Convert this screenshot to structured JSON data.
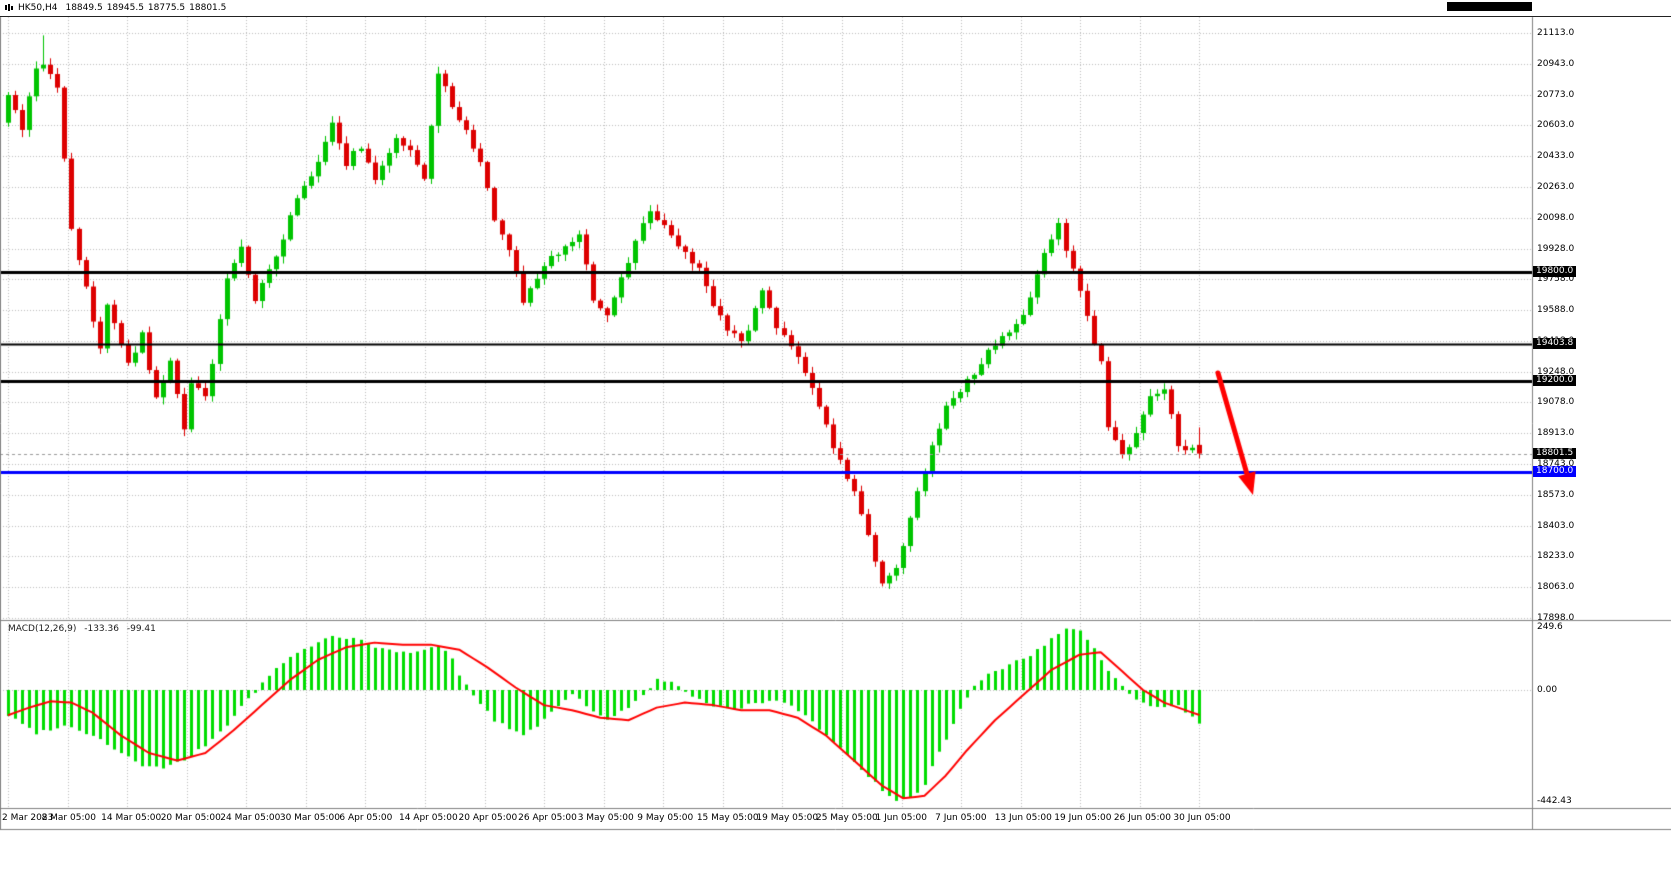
{
  "header": {
    "symbol": "HK50,H4",
    "open": "18849.5",
    "high": "18945.5",
    "low": "18775.5",
    "close": "18801.5"
  },
  "colors": {
    "bull": "#00c400",
    "bear": "#dd0000",
    "grid": "#bdbdbd",
    "macd_hist": "#00dd00",
    "macd_signal": "#ff0000",
    "hline_black": "#000000",
    "hline_blue": "#0000ff",
    "arrow": "#ff0000",
    "axis_text": "#000000",
    "price_marker_bg": "#000000"
  },
  "chart_data": {
    "type": "candlestick",
    "symbol": "HK50",
    "timeframe": "H4",
    "candle_count": 170,
    "y_axis": {
      "min": 17898.0,
      "max": 21113.0,
      "ticks": [
        "21113.0",
        "20943.0",
        "20773.0",
        "20603.0",
        "20433.0",
        "20263.0",
        "20098.0",
        "19928.0",
        "19758.0",
        "19588.0",
        "19418.0",
        "19248.0",
        "19078.0",
        "18913.0",
        "18743.0",
        "18573.0",
        "18403.0",
        "18233.0",
        "18063.0",
        "17898.0"
      ]
    },
    "x_labels": [
      "2 Mar 2023",
      "8 Mar 05:00",
      "14 Mar 05:00",
      "20 Mar 05:00",
      "24 Mar 05:00",
      "30 Mar 05:00",
      "6 Apr 05:00",
      "14 Apr 05:00",
      "20 Apr 05:00",
      "26 Apr 05:00",
      "3 May 05:00",
      "9 May 05:00",
      "15 May 05:00",
      "19 May 05:00",
      "25 May 05:00",
      "1 Jun 05:00",
      "7 Jun 05:00",
      "13 Jun 05:00",
      "19 Jun 05:00",
      "26 Jun 05:00",
      "30 Jun 05:00"
    ],
    "last_candle": {
      "open": 18849.5,
      "high": 18945.5,
      "low": 18775.5,
      "close": 18801.5
    },
    "price_anchors": [
      [
        0,
        20750
      ],
      [
        2,
        20600
      ],
      [
        4,
        20900
      ],
      [
        5,
        20950
      ],
      [
        7,
        20800
      ],
      [
        9,
        20050
      ],
      [
        11,
        19700
      ],
      [
        13,
        19400
      ],
      [
        14,
        19600
      ],
      [
        16,
        19400
      ],
      [
        17,
        19300
      ],
      [
        19,
        19450
      ],
      [
        21,
        19100
      ],
      [
        23,
        19300
      ],
      [
        25,
        18950
      ],
      [
        26,
        19200
      ],
      [
        28,
        19100
      ],
      [
        31,
        19750
      ],
      [
        33,
        19950
      ],
      [
        35,
        19650
      ],
      [
        37,
        19800
      ],
      [
        41,
        20200
      ],
      [
        44,
        20400
      ],
      [
        46,
        20600
      ],
      [
        48,
        20400
      ],
      [
        50,
        20500
      ],
      [
        52,
        20300
      ],
      [
        55,
        20550
      ],
      [
        57,
        20450
      ],
      [
        59,
        20300
      ],
      [
        61,
        20900
      ],
      [
        63,
        20700
      ],
      [
        65,
        20600
      ],
      [
        67,
        20400
      ],
      [
        69,
        20100
      ],
      [
        71,
        19900
      ],
      [
        73,
        19650
      ],
      [
        76,
        19850
      ],
      [
        78,
        19900
      ],
      [
        81,
        20000
      ],
      [
        83,
        19650
      ],
      [
        85,
        19550
      ],
      [
        88,
        19850
      ],
      [
        91,
        20150
      ],
      [
        93,
        20050
      ],
      [
        95,
        19950
      ],
      [
        98,
        19800
      ],
      [
        101,
        19550
      ],
      [
        104,
        19400
      ],
      [
        107,
        19700
      ],
      [
        109,
        19500
      ],
      [
        111,
        19400
      ],
      [
        114,
        19150
      ],
      [
        116,
        18950
      ],
      [
        118,
        18750
      ],
      [
        120,
        18600
      ],
      [
        122,
        18350
      ],
      [
        124,
        18100
      ],
      [
        126,
        18150
      ],
      [
        128,
        18450
      ],
      [
        131,
        18850
      ],
      [
        133,
        19050
      ],
      [
        136,
        19200
      ],
      [
        138,
        19300
      ],
      [
        140,
        19400
      ],
      [
        143,
        19500
      ],
      [
        145,
        19650
      ],
      [
        147,
        19900
      ],
      [
        149,
        20050
      ],
      [
        151,
        19800
      ],
      [
        153,
        19550
      ],
      [
        155,
        19300
      ],
      [
        156,
        18950
      ],
      [
        158,
        18800
      ],
      [
        160,
        18900
      ],
      [
        162,
        19100
      ],
      [
        164,
        19150
      ],
      [
        166,
        18850
      ],
      [
        169,
        18801.5
      ]
    ],
    "horizontal_lines": [
      {
        "price": 19800.0,
        "label": "19800.0",
        "color": "#000000",
        "width": 3
      },
      {
        "price": 19403.8,
        "label": "19403.8",
        "color": "#000000",
        "width": 2
      },
      {
        "price": 19200.0,
        "label": "19200.0",
        "color": "#000000",
        "width": 3
      },
      {
        "price": 18700.0,
        "label": "18700.0",
        "color": "#0000ff",
        "width": 3
      }
    ],
    "current_price": {
      "value": 18801.5,
      "label": "18801.5"
    },
    "arrow": {
      "from": [
        1218,
        373
      ],
      "to": [
        1253,
        495
      ],
      "color": "#ff0000"
    },
    "macd": {
      "label": "MACD(12,26,9)",
      "value_main": "-133.36",
      "value_signal": "-99.41",
      "axis_ticks": [
        {
          "v": 249.6,
          "label": "249.6"
        },
        {
          "v": 0,
          "label": "0.00"
        },
        {
          "v": -442.43,
          "label": "-442.43"
        }
      ],
      "histogram_anchors": [
        [
          0,
          -100
        ],
        [
          4,
          -170
        ],
        [
          8,
          -140
        ],
        [
          12,
          -180
        ],
        [
          16,
          -250
        ],
        [
          19,
          -300
        ],
        [
          22,
          -310
        ],
        [
          25,
          -280
        ],
        [
          28,
          -220
        ],
        [
          31,
          -140
        ],
        [
          33,
          -60
        ],
        [
          35,
          -10
        ],
        [
          37,
          60
        ],
        [
          40,
          130
        ],
        [
          43,
          175
        ],
        [
          46,
          215
        ],
        [
          49,
          205
        ],
        [
          52,
          170
        ],
        [
          55,
          150
        ],
        [
          58,
          150
        ],
        [
          61,
          175
        ],
        [
          63,
          130
        ],
        [
          64,
          60
        ],
        [
          66,
          -20
        ],
        [
          69,
          -120
        ],
        [
          73,
          -180
        ],
        [
          76,
          -120
        ],
        [
          78,
          -60
        ],
        [
          80,
          -20
        ],
        [
          82,
          -60
        ],
        [
          85,
          -120
        ],
        [
          88,
          -70
        ],
        [
          90,
          -15
        ],
        [
          92,
          40
        ],
        [
          94,
          30
        ],
        [
          97,
          -30
        ],
        [
          100,
          -60
        ],
        [
          103,
          -80
        ],
        [
          106,
          -50
        ],
        [
          109,
          -40
        ],
        [
          111,
          -60
        ],
        [
          113,
          -100
        ],
        [
          116,
          -180
        ],
        [
          119,
          -260
        ],
        [
          122,
          -340
        ],
        [
          124,
          -400
        ],
        [
          126,
          -442
        ],
        [
          128,
          -430
        ],
        [
          130,
          -380
        ],
        [
          131,
          -300
        ],
        [
          133,
          -200
        ],
        [
          135,
          -80
        ],
        [
          137,
          20
        ],
        [
          139,
          60
        ],
        [
          142,
          100
        ],
        [
          145,
          140
        ],
        [
          148,
          200
        ],
        [
          150,
          245
        ],
        [
          152,
          230
        ],
        [
          154,
          160
        ],
        [
          156,
          80
        ],
        [
          158,
          20
        ],
        [
          160,
          -40
        ],
        [
          163,
          -70
        ],
        [
          166,
          -60
        ],
        [
          169,
          -133.36
        ]
      ],
      "signal_anchors": [
        [
          0,
          -100
        ],
        [
          3,
          -70
        ],
        [
          6,
          -45
        ],
        [
          9,
          -50
        ],
        [
          12,
          -90
        ],
        [
          16,
          -180
        ],
        [
          20,
          -250
        ],
        [
          24,
          -280
        ],
        [
          28,
          -250
        ],
        [
          32,
          -160
        ],
        [
          36,
          -60
        ],
        [
          40,
          40
        ],
        [
          44,
          120
        ],
        [
          48,
          170
        ],
        [
          52,
          188
        ],
        [
          56,
          180
        ],
        [
          60,
          180
        ],
        [
          64,
          160
        ],
        [
          68,
          90
        ],
        [
          72,
          10
        ],
        [
          76,
          -60
        ],
        [
          80,
          -80
        ],
        [
          84,
          -110
        ],
        [
          88,
          -120
        ],
        [
          92,
          -70
        ],
        [
          96,
          -50
        ],
        [
          100,
          -60
        ],
        [
          104,
          -80
        ],
        [
          108,
          -80
        ],
        [
          112,
          -110
        ],
        [
          116,
          -180
        ],
        [
          120,
          -280
        ],
        [
          124,
          -380
        ],
        [
          127,
          -430
        ],
        [
          130,
          -420
        ],
        [
          133,
          -340
        ],
        [
          136,
          -240
        ],
        [
          140,
          -120
        ],
        [
          144,
          -20
        ],
        [
          148,
          80
        ],
        [
          152,
          140
        ],
        [
          155,
          150
        ],
        [
          158,
          75
        ],
        [
          161,
          0
        ],
        [
          164,
          -50
        ],
        [
          166,
          -70
        ],
        [
          169,
          -99.41
        ]
      ]
    }
  }
}
